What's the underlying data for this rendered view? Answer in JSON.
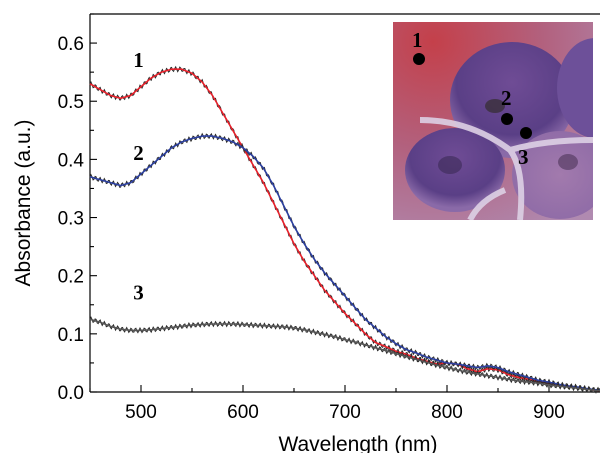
{
  "chart_data": {
    "type": "line",
    "title": "",
    "xlabel": "Wavelength (nm)",
    "ylabel": "Absorbance (a.u.)",
    "xlim": [
      450,
      950
    ],
    "ylim": [
      0.0,
      0.65
    ],
    "x_ticks": [
      "500",
      "600",
      "700",
      "800",
      "900"
    ],
    "y_ticks": [
      "0.0",
      "0.1",
      "0.2",
      "0.3",
      "0.4",
      "0.5",
      "0.6"
    ],
    "grid": false,
    "series": [
      {
        "name": "1",
        "color": "#e8202a",
        "raw_color": "#2a2a2a",
        "x": [
          450,
          460,
          470,
          480,
          490,
          500,
          510,
          520,
          530,
          540,
          550,
          560,
          570,
          580,
          590,
          600,
          610,
          620,
          630,
          640,
          650,
          660,
          670,
          680,
          690,
          700,
          710,
          720,
          730,
          740,
          750,
          760,
          770,
          780,
          790,
          800,
          810,
          820,
          830,
          840,
          850,
          860,
          870,
          880,
          890,
          900,
          910,
          920,
          930,
          940,
          950
        ],
        "values": [
          0.53,
          0.52,
          0.51,
          0.505,
          0.51,
          0.525,
          0.54,
          0.55,
          0.555,
          0.555,
          0.548,
          0.533,
          0.51,
          0.48,
          0.45,
          0.42,
          0.39,
          0.36,
          0.325,
          0.29,
          0.255,
          0.225,
          0.2,
          0.175,
          0.155,
          0.135,
          0.118,
          0.1,
          0.085,
          0.078,
          0.07,
          0.065,
          0.058,
          0.053,
          0.048,
          0.05,
          0.048,
          0.04,
          0.035,
          0.04,
          0.038,
          0.03,
          0.025,
          0.022,
          0.018,
          0.015,
          0.012,
          0.01,
          0.007,
          0.004,
          0.002
        ]
      },
      {
        "name": "2",
        "color": "#2b3fa0",
        "raw_color": "#2a2a2a",
        "x": [
          450,
          460,
          470,
          480,
          490,
          500,
          510,
          520,
          530,
          540,
          550,
          560,
          570,
          580,
          590,
          600,
          610,
          620,
          630,
          640,
          650,
          660,
          670,
          680,
          690,
          700,
          710,
          720,
          730,
          740,
          750,
          760,
          770,
          780,
          790,
          800,
          810,
          820,
          830,
          840,
          850,
          860,
          870,
          880,
          890,
          900,
          910,
          920,
          930,
          940,
          950
        ],
        "values": [
          0.37,
          0.365,
          0.36,
          0.355,
          0.36,
          0.375,
          0.39,
          0.405,
          0.42,
          0.43,
          0.436,
          0.44,
          0.44,
          0.436,
          0.43,
          0.42,
          0.405,
          0.385,
          0.355,
          0.32,
          0.285,
          0.255,
          0.228,
          0.205,
          0.185,
          0.165,
          0.145,
          0.125,
          0.11,
          0.095,
          0.083,
          0.073,
          0.067,
          0.06,
          0.055,
          0.05,
          0.048,
          0.045,
          0.042,
          0.045,
          0.042,
          0.035,
          0.03,
          0.025,
          0.02,
          0.017,
          0.013,
          0.01,
          0.008,
          0.005,
          0.003
        ]
      },
      {
        "name": "3",
        "color": "#555555",
        "raw_color": "#2a2a2a",
        "x": [
          450,
          460,
          470,
          480,
          490,
          500,
          510,
          520,
          530,
          540,
          550,
          560,
          570,
          580,
          590,
          600,
          610,
          620,
          630,
          640,
          650,
          660,
          670,
          680,
          690,
          700,
          710,
          720,
          730,
          740,
          750,
          760,
          770,
          780,
          790,
          800,
          810,
          820,
          830,
          840,
          850,
          860,
          870,
          880,
          890,
          900,
          910,
          920,
          930,
          940,
          950
        ],
        "values": [
          0.125,
          0.12,
          0.113,
          0.108,
          0.106,
          0.106,
          0.107,
          0.109,
          0.111,
          0.113,
          0.115,
          0.116,
          0.117,
          0.117,
          0.117,
          0.116,
          0.115,
          0.114,
          0.113,
          0.112,
          0.11,
          0.107,
          0.103,
          0.099,
          0.095,
          0.09,
          0.086,
          0.081,
          0.076,
          0.071,
          0.066,
          0.061,
          0.056,
          0.051,
          0.046,
          0.042,
          0.038,
          0.034,
          0.031,
          0.028,
          0.025,
          0.022,
          0.019,
          0.017,
          0.015,
          0.012,
          0.01,
          0.008,
          0.006,
          0.004,
          0.002
        ]
      }
    ],
    "curve_labels": [
      {
        "text": "1",
        "x": 463,
        "y": 0.545
      },
      {
        "text": "2",
        "x": 463,
        "y": 0.385
      },
      {
        "text": "3",
        "x": 463,
        "y": 0.145
      }
    ],
    "inset": {
      "type": "photo",
      "labels": [
        "1",
        "2",
        "3"
      ]
    }
  }
}
